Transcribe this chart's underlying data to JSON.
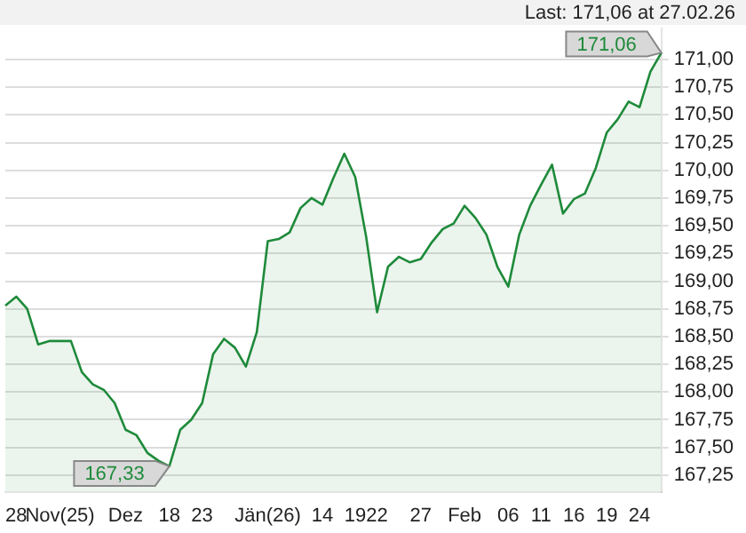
{
  "chart_data": {
    "type": "area",
    "categories": [
      null,
      "28",
      null,
      null,
      null,
      "Nov(25)",
      null,
      null,
      null,
      null,
      null,
      "Dez",
      null,
      null,
      null,
      "18",
      null,
      null,
      "23",
      null,
      null,
      null,
      null,
      null,
      "Jän(26)",
      null,
      null,
      null,
      null,
      "14",
      null,
      null,
      "19",
      null,
      "22",
      null,
      null,
      null,
      "27",
      null,
      null,
      null,
      "Feb",
      null,
      null,
      null,
      "06",
      null,
      null,
      "11",
      null,
      null,
      "16",
      null,
      null,
      "19",
      null,
      null,
      "24",
      null,
      null
    ],
    "series": [
      {
        "color": "#1e8a3a",
        "values": [
          168.78,
          168.86,
          168.75,
          168.43,
          168.46,
          168.46,
          168.46,
          168.18,
          168.07,
          168.02,
          167.9,
          167.66,
          167.61,
          167.45,
          167.38,
          167.33,
          167.66,
          167.75,
          167.9,
          168.34,
          168.48,
          168.4,
          168.23,
          168.54,
          169.36,
          169.38,
          169.44,
          169.66,
          169.75,
          169.69,
          169.93,
          170.15,
          169.94,
          169.4,
          168.72,
          169.13,
          169.22,
          169.17,
          169.2,
          169.35,
          169.47,
          169.52,
          169.68,
          169.57,
          169.42,
          169.13,
          168.95,
          169.42,
          169.68,
          169.87,
          170.05,
          169.61,
          169.74,
          169.79,
          170.02,
          170.34,
          170.46,
          170.62,
          170.57,
          170.89,
          171.06
        ]
      }
    ],
    "ylim": [
      167.1,
      171.28
    ],
    "yticks": [
      {
        "value": 167.25,
        "label": "167,25"
      },
      {
        "value": 167.5,
        "label": "167,50"
      },
      {
        "value": 167.75,
        "label": "167,75"
      },
      {
        "value": 168,
        "label": "168,00"
      },
      {
        "value": 168.25,
        "label": "168,25"
      },
      {
        "value": 168.5,
        "label": "168,50"
      },
      {
        "value": 168.75,
        "label": "168,75"
      },
      {
        "value": 169,
        "label": "169,00"
      },
      {
        "value": 169.25,
        "label": "169,25"
      },
      {
        "value": 169.5,
        "label": "169,50"
      },
      {
        "value": 169.75,
        "label": "169,75"
      },
      {
        "value": 170,
        "label": "170,00"
      },
      {
        "value": 170.25,
        "label": "170,25"
      },
      {
        "value": 170.5,
        "label": "170,50"
      },
      {
        "value": 170.75,
        "label": "170,75"
      },
      {
        "value": 171,
        "label": "171,00"
      }
    ],
    "grid": "y",
    "annotations": [
      "Last: 171,06 at 27.02.26",
      {
        "text": "167,33",
        "x": "18",
        "y": 167.33
      },
      "171,06"
    ]
  }
}
